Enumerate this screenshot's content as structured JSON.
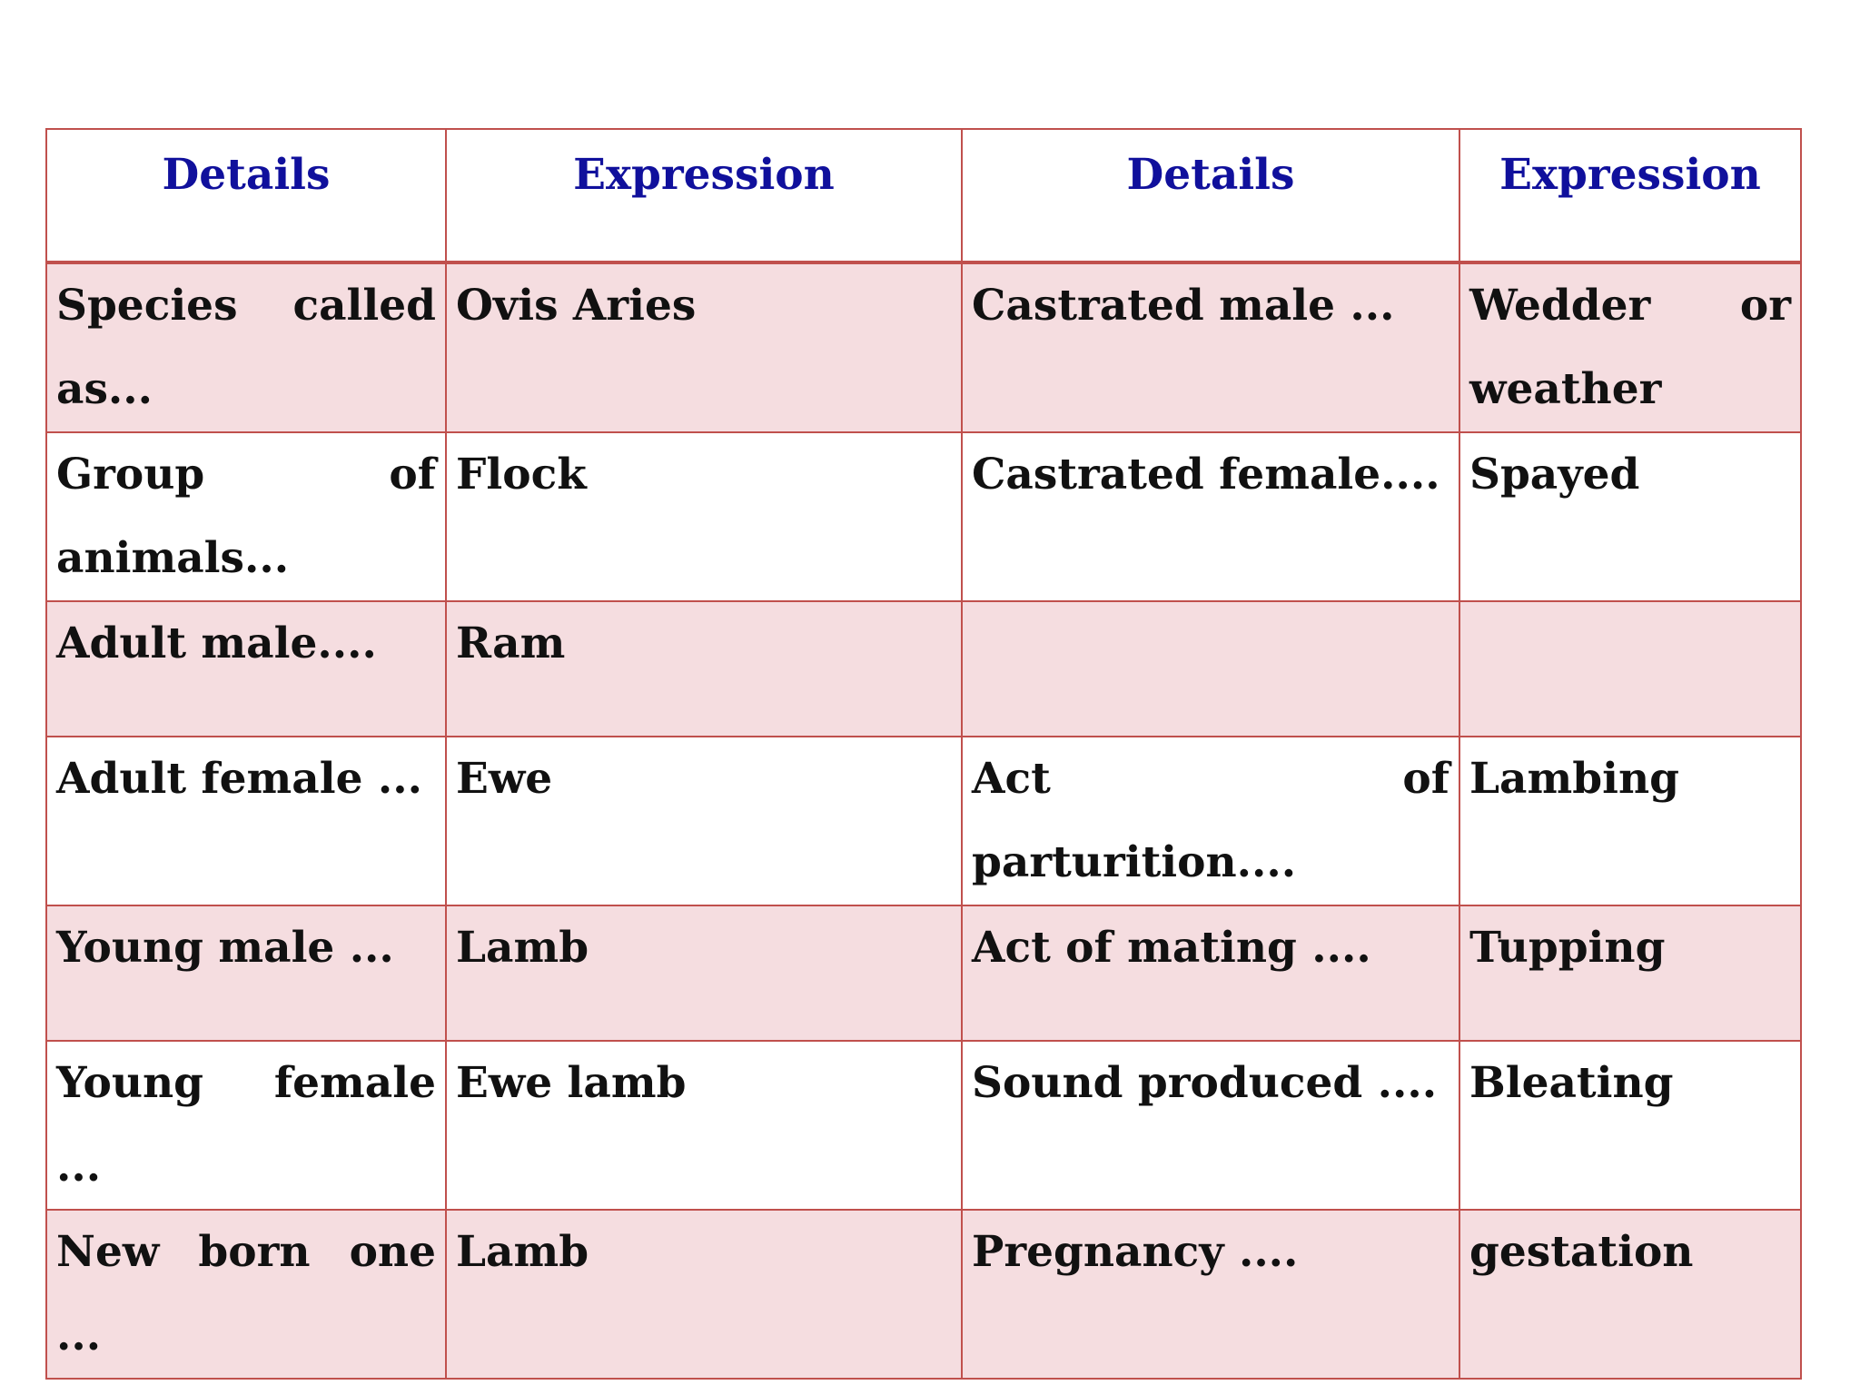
{
  "headers": [
    "Details",
    "Expression",
    "Details",
    "Expression"
  ],
  "rows": [
    [
      "Species called as...",
      "Ovis Aries",
      "Castrated male ...",
      "Wedder or weather"
    ],
    [
      "Group of animals...",
      "Flock",
      "Castrated female....",
      "Spayed"
    ],
    [
      "Adult male....",
      "Ram",
      "",
      ""
    ],
    [
      "Adult female ...",
      "Ewe",
      "Act of parturition....",
      "Lambing"
    ],
    [
      "Young male ...",
      "Lamb",
      "Act of mating ....",
      "Tupping"
    ],
    [
      "Young female ...",
      "Ewe lamb",
      "Sound produced ....",
      "Bleating"
    ],
    [
      "New born one ...",
      "Lamb",
      "Pregnancy ....",
      "gestation"
    ]
  ],
  "colors": {
    "header_text": "#10109c",
    "border": "#c0504d",
    "row_shade": "#f5dde0",
    "row_plain": "#ffffff",
    "body_text": "#111111"
  }
}
